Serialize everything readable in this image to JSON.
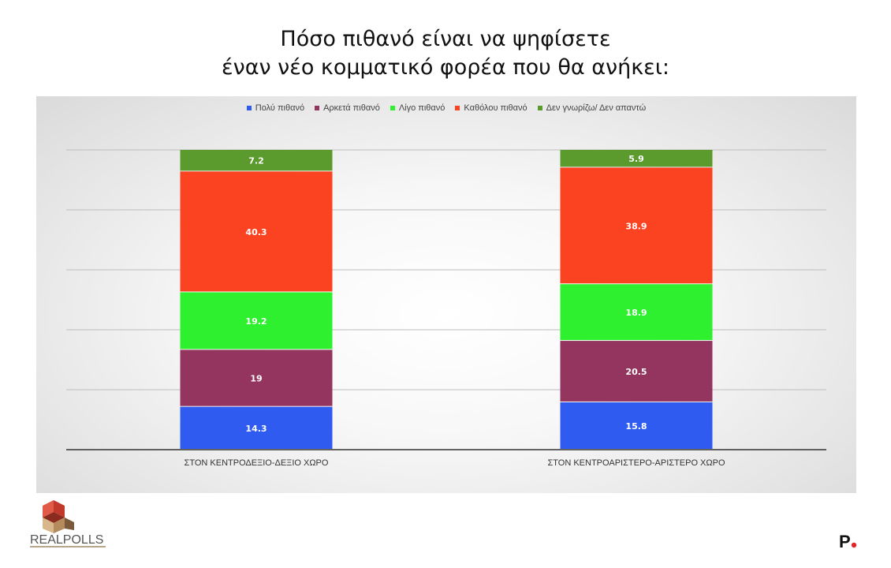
{
  "title": {
    "line1": "Πόσο πιθανό είναι να ψηφίσετε",
    "line2": "έναν νέο κομματικό φορέα που θα ανήκει:"
  },
  "colors": {
    "very_likely": "#2f5bf0",
    "quite_likely": "#93355e",
    "little_likely": "#2ef02e",
    "not_at_all": "#fc4321",
    "dont_know": "#5b9b2e"
  },
  "chart_data": {
    "type": "bar",
    "stacked": true,
    "categories": [
      "ΣΤΟΝ ΚΕΝΤΡΟΔΕΞΙΟ-ΔΕΞΙΟ ΧΩΡΟ",
      "ΣΤΟΝ ΚΕΝΤΡΟΑΡΙΣΤΕΡΟ-ΑΡΙΣΤΕΡΟ ΧΩΡΟ"
    ],
    "series": [
      {
        "name": "Πολύ πιθανό",
        "color": "#2f5bf0",
        "values": [
          14.3,
          15.8
        ],
        "labels": [
          "14.3",
          "15.8"
        ]
      },
      {
        "name": "Αρκετά πιθανό",
        "color": "#93355e",
        "values": [
          19,
          20.5
        ],
        "labels": [
          "19",
          "20.5"
        ]
      },
      {
        "name": "Λίγο πιθανό",
        "color": "#2ef02e",
        "values": [
          19.2,
          18.9
        ],
        "labels": [
          "19.2",
          "18.9"
        ]
      },
      {
        "name": "Καθόλου πιθανό",
        "color": "#fc4321",
        "values": [
          40.3,
          38.9
        ],
        "labels": [
          "40.3",
          "38.9"
        ]
      },
      {
        "name": "Δεν γνωρίζω/ Δεν απαντώ",
        "color": "#5b9b2e",
        "values": [
          7.2,
          5.9
        ],
        "labels": [
          "7.2",
          "5.9"
        ]
      }
    ],
    "ylim": [
      0,
      100
    ],
    "grid": true,
    "legend": "top"
  },
  "logos": {
    "left": "REALPOLLS",
    "right": "P."
  }
}
